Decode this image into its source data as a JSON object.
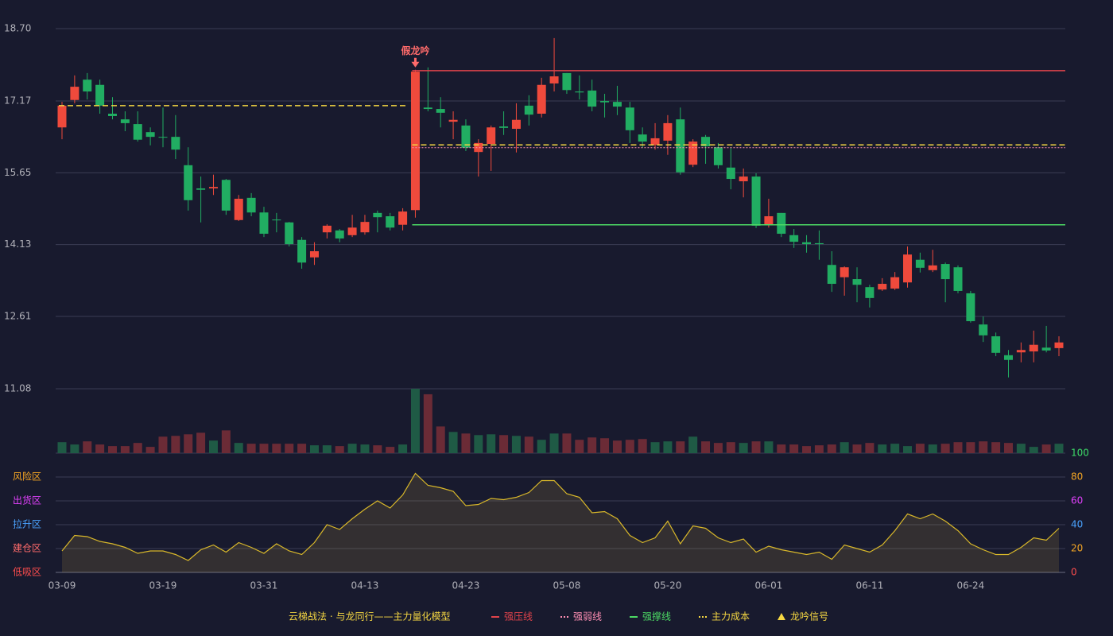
{
  "chart_data": {
    "type": "candlestick",
    "categories": [
      "03-09",
      null,
      null,
      null,
      null,
      null,
      null,
      null,
      "03-19",
      null,
      null,
      null,
      null,
      null,
      null,
      null,
      "03-31",
      null,
      null,
      null,
      null,
      null,
      null,
      null,
      "04-13",
      null,
      null,
      null,
      null,
      null,
      null,
      null,
      "04-23",
      null,
      null,
      null,
      null,
      null,
      null,
      null,
      "05-08",
      null,
      null,
      null,
      null,
      null,
      null,
      null,
      "05-20",
      null,
      null,
      null,
      null,
      null,
      null,
      null,
      "06-01",
      null,
      null,
      null,
      null,
      null,
      null,
      null,
      "06-11",
      null,
      null,
      null,
      null,
      null,
      null,
      null,
      "06-24",
      null,
      null,
      null,
      null,
      null,
      null,
      null
    ],
    "open": [
      16.61,
      17.19,
      17.62,
      17.51,
      16.9,
      16.78,
      16.68,
      16.51,
      16.41,
      16.41,
      15.81,
      15.32,
      15.32,
      15.5,
      14.65,
      15.12,
      14.81,
      14.66,
      14.6,
      14.23,
      13.86,
      14.39,
      14.43,
      14.33,
      14.39,
      14.8,
      14.73,
      14.55,
      14.86,
      17.03,
      17.0,
      16.73,
      16.65,
      16.09,
      16.26,
      16.63,
      16.58,
      17.07,
      16.9,
      17.54,
      17.76,
      17.37,
      17.39,
      17.17,
      17.15,
      17.03,
      16.46,
      16.24,
      16.33,
      16.78,
      15.82,
      16.41,
      16.19,
      15.76,
      15.47,
      15.57,
      14.56,
      14.8,
      14.33,
      14.18,
      14.16,
      13.7,
      13.44,
      13.4,
      13.23,
      13.18,
      13.2,
      13.33,
      13.81,
      13.59,
      13.72,
      13.65,
      13.1,
      12.44,
      12.19,
      11.79,
      11.85,
      11.87,
      11.95,
      11.94
    ],
    "close": [
      17.07,
      17.47,
      17.37,
      17.07,
      16.85,
      16.7,
      16.35,
      16.41,
      16.4,
      16.14,
      15.07,
      15.29,
      15.35,
      14.85,
      15.1,
      14.81,
      14.36,
      14.65,
      14.14,
      13.75,
      13.99,
      14.53,
      14.26,
      14.49,
      14.61,
      14.71,
      14.49,
      14.83,
      17.79,
      17.0,
      16.92,
      16.77,
      16.18,
      16.28,
      16.61,
      16.6,
      16.77,
      16.88,
      17.51,
      17.69,
      17.4,
      17.35,
      17.05,
      17.14,
      17.05,
      16.55,
      16.31,
      16.38,
      16.7,
      15.66,
      16.31,
      16.21,
      15.81,
      15.52,
      15.57,
      14.53,
      14.73,
      14.36,
      14.19,
      14.14,
      14.14,
      13.3,
      13.65,
      13.28,
      13.0,
      13.3,
      13.44,
      13.92,
      13.64,
      13.69,
      13.4,
      13.15,
      12.51,
      12.21,
      11.84,
      11.69,
      11.9,
      12.01,
      11.89,
      12.06
    ],
    "high": [
      17.15,
      17.71,
      17.76,
      17.62,
      17.25,
      16.95,
      16.95,
      16.61,
      17.03,
      16.87,
      16.19,
      15.57,
      15.61,
      15.52,
      15.18,
      15.22,
      14.93,
      14.8,
      14.61,
      14.29,
      14.18,
      14.56,
      14.46,
      14.76,
      14.76,
      14.85,
      14.8,
      14.9,
      17.83,
      17.88,
      17.25,
      16.95,
      16.78,
      16.36,
      16.65,
      16.95,
      17.12,
      17.29,
      17.66,
      18.5,
      17.76,
      17.71,
      17.62,
      17.32,
      17.49,
      17.15,
      16.61,
      16.7,
      16.87,
      17.03,
      16.36,
      16.45,
      16.28,
      16.19,
      15.74,
      15.64,
      15.1,
      14.8,
      14.46,
      14.33,
      14.43,
      13.99,
      13.67,
      13.65,
      13.28,
      13.42,
      13.55,
      14.09,
      13.96,
      14.02,
      13.75,
      13.69,
      13.15,
      12.61,
      12.27,
      11.9,
      12.06,
      12.31,
      12.41,
      12.19
    ],
    "low": [
      16.36,
      17.12,
      17.2,
      16.9,
      16.78,
      16.53,
      16.31,
      16.23,
      16.19,
      15.94,
      14.85,
      14.6,
      15.18,
      14.76,
      14.63,
      14.73,
      14.29,
      14.39,
      14.09,
      13.62,
      13.7,
      14.26,
      14.18,
      14.29,
      14.34,
      14.39,
      14.43,
      14.43,
      14.7,
      16.95,
      16.61,
      16.36,
      16.11,
      15.57,
      15.69,
      16.45,
      16.08,
      16.65,
      16.82,
      17.37,
      17.32,
      17.2,
      16.95,
      16.82,
      16.87,
      16.28,
      16.18,
      16.14,
      16.03,
      15.61,
      15.77,
      15.84,
      15.74,
      15.3,
      15.13,
      14.48,
      14.49,
      14.29,
      14.06,
      13.96,
      13.81,
      13.13,
      13.05,
      12.91,
      12.8,
      13.15,
      13.17,
      13.22,
      13.54,
      13.55,
      12.91,
      13.1,
      12.48,
      12.07,
      11.77,
      11.32,
      11.64,
      11.64,
      11.85,
      11.77
    ],
    "up_color": "#ef4a3c",
    "down_color": "#21ad62",
    "ylim": [
      11.08,
      18.7
    ],
    "yticks": [
      11.08,
      12.61,
      14.13,
      15.65,
      17.17,
      {
        "value": 18.7,
        "label": "18.70"
      }
    ],
    "grid": true,
    "lines": [
      {
        "name": "强压线",
        "color": "#e0434b",
        "style": "solid",
        "segments": [
          {
            "value": 17.81,
            "from": 28,
            "to": 79
          }
        ]
      },
      {
        "name": "强弱线",
        "color": "#ff8fb4",
        "style": "dotted",
        "segments": [
          {
            "value": 16.18,
            "from": 28,
            "to": 79
          }
        ]
      },
      {
        "name": "强撑线",
        "color": "#4cd964",
        "style": "solid",
        "segments": [
          {
            "value": 14.55,
            "from": 28,
            "to": 79
          }
        ]
      },
      {
        "name": "主力成本",
        "color": "#f5d742",
        "style": "dashed",
        "segments": [
          {
            "value": 17.07,
            "from": 0,
            "to": 27
          },
          {
            "value": 16.24,
            "from": 28,
            "to": 79
          }
        ]
      }
    ],
    "annotations": [
      {
        "text": "假龙吟",
        "index": 28,
        "color": "#ff6b6b"
      }
    ],
    "signal": {
      "name": "龙吟信号",
      "color": "#f5d742"
    },
    "volume": {
      "values": [
        14,
        11,
        15,
        11,
        9,
        9,
        13,
        8,
        21,
        22,
        24,
        26,
        16,
        29,
        13,
        12,
        12,
        12,
        12,
        12,
        10,
        10,
        9,
        12,
        11,
        10,
        8,
        11,
        82,
        75,
        34,
        27,
        25,
        23,
        24,
        23,
        22,
        21,
        17,
        25,
        25,
        17,
        20,
        19,
        16,
        17,
        18,
        14,
        15,
        15,
        21,
        15,
        13,
        14,
        13,
        15,
        15,
        11,
        11,
        9,
        10,
        11,
        14,
        11,
        13,
        11,
        12,
        9,
        12,
        11,
        12,
        14,
        14,
        15,
        14,
        13,
        12,
        8,
        11,
        12
      ],
      "up_color": "#1f5a45",
      "down_color": "#6b2b36"
    },
    "oscillator": {
      "values": [
        18,
        31,
        30,
        26,
        24,
        21,
        16,
        18,
        18,
        15,
        10,
        19,
        23,
        17,
        25,
        21,
        16,
        24,
        18,
        15,
        25,
        40,
        36,
        45,
        53,
        60,
        54,
        65,
        83,
        73,
        71,
        68,
        56,
        57,
        62,
        61,
        63,
        67,
        77,
        77,
        66,
        63,
        50,
        51,
        45,
        31,
        25,
        29,
        43,
        24,
        39,
        37,
        29,
        25,
        28,
        17,
        22,
        19,
        17,
        15,
        17,
        11,
        23,
        20,
        17,
        23,
        35,
        49,
        45,
        49,
        43,
        35,
        24,
        19,
        15,
        15,
        21,
        29,
        27,
        37
      ],
      "color": "#d9b82a",
      "ylim": [
        0,
        100
      ],
      "yticks": [
        0,
        20,
        40,
        60,
        80,
        100
      ],
      "ytick_colors": [
        "#ff4d4d",
        "#f5a623",
        "#4aa3ff",
        "#e040fb",
        "#f5a623",
        "#3ddc68"
      ],
      "zones": [
        {
          "label": "低吸区",
          "value": 0,
          "color": "#ff4d4d"
        },
        {
          "label": "建仓区",
          "value": 20,
          "color": "#ff6b6b"
        },
        {
          "label": "拉升区",
          "value": 40,
          "color": "#4aa3ff"
        },
        {
          "label": "出货区",
          "value": 60,
          "color": "#e040fb"
        },
        {
          "label": "风险区",
          "value": 80,
          "color": "#f5a623"
        }
      ]
    },
    "legend_title": "云梯战法 · 与龙同行——主力量化模型",
    "legend_color": "#f5d742"
  }
}
